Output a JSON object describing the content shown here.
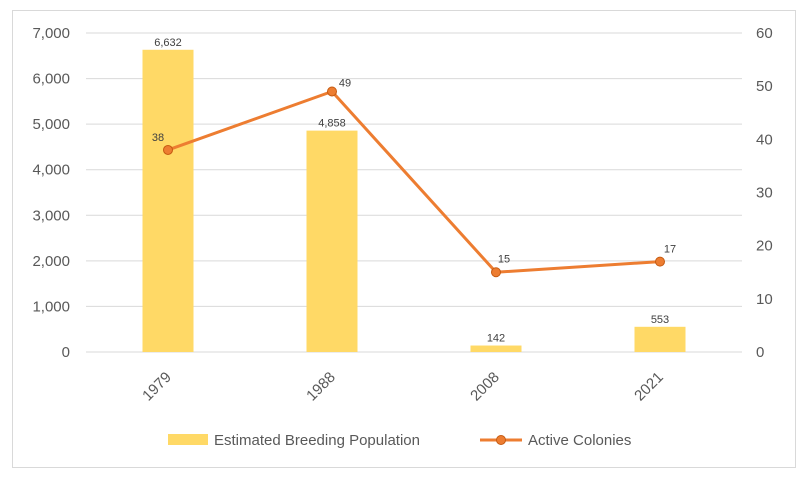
{
  "chart_data": {
    "type": "bar+line",
    "categories": [
      "1979",
      "1988",
      "2008",
      "2021"
    ],
    "series": [
      {
        "name": "Estimated Breeding Population",
        "type": "bar",
        "axis": "left",
        "values": [
          6632,
          4858,
          142,
          553
        ],
        "labels": [
          "6,632",
          "4,858",
          "142",
          "553"
        ],
        "color": "#FFD966"
      },
      {
        "name": "Active Colonies",
        "type": "line",
        "axis": "right",
        "values": [
          38,
          49,
          15,
          17
        ],
        "labels": [
          "38",
          "49",
          "15",
          "17"
        ],
        "color": "#ED7D31"
      }
    ],
    "y_left": {
      "min": 0,
      "max": 7000,
      "ticks": [
        "0",
        "1,000",
        "2,000",
        "3,000",
        "4,000",
        "5,000",
        "6,000",
        "7,000"
      ]
    },
    "y_right": {
      "min": 0,
      "max": 60,
      "ticks": [
        "0",
        "10",
        "20",
        "30",
        "40",
        "50",
        "60"
      ]
    },
    "grid": true,
    "legend_position": "bottom"
  }
}
